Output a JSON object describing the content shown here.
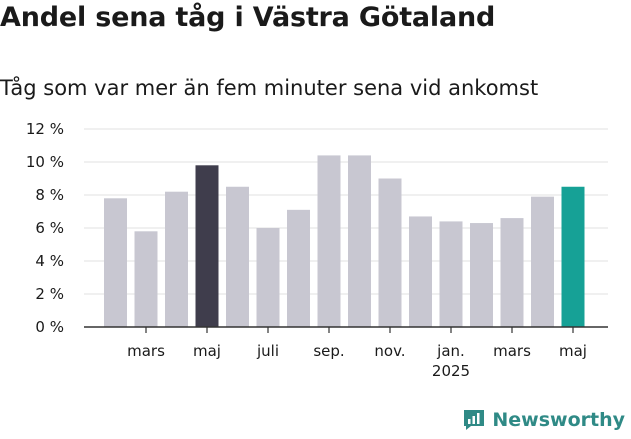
{
  "title": "Andel sena tåg i Västra Götaland",
  "subtitle": "Tåg som var mer än fem minuter sena vid ankomst",
  "brand": {
    "name": "Newsworthy",
    "icon": "newsworthy-logo-icon"
  },
  "colors": {
    "bar": "#c8c7d1",
    "highlight_dark": "#3f3d4c",
    "highlight_teal": "#16a196",
    "grid": "#e2e2e2",
    "axis": "#333333"
  },
  "chart_data": {
    "type": "bar",
    "title": "Andel sena tåg i Västra Götaland",
    "subtitle": "Tåg som var mer än fem minuter sena vid ankomst",
    "xlabel": "",
    "ylabel": "",
    "ylim": [
      0,
      12
    ],
    "yticks": [
      0,
      2,
      4,
      6,
      8,
      10,
      12
    ],
    "ytick_labels": [
      "0 %",
      "2 %",
      "4 %",
      "6 %",
      "8 %",
      "10 %",
      "12 %"
    ],
    "grid": true,
    "legend": "none",
    "categories": [
      "2024-02",
      "2024-03",
      "2024-04",
      "2024-05",
      "2024-06",
      "2024-07",
      "2024-08",
      "2024-09",
      "2024-10",
      "2024-11",
      "2024-12",
      "2025-01",
      "2025-02",
      "2025-03",
      "2025-04",
      "2025-05"
    ],
    "values": [
      7.8,
      5.8,
      8.2,
      9.8,
      8.5,
      6.0,
      7.1,
      10.4,
      10.4,
      9.0,
      6.7,
      6.4,
      6.3,
      6.6,
      7.9,
      8.5
    ],
    "highlight": {
      "3": "dark",
      "15": "teal"
    },
    "x_tick_labels": [
      {
        "label": "mars",
        "index": 1
      },
      {
        "label": "maj",
        "index": 3
      },
      {
        "label": "juli",
        "index": 5
      },
      {
        "label": "sep.",
        "index": 7
      },
      {
        "label": "nov.",
        "index": 9
      },
      {
        "label": "jan.",
        "index": 11,
        "sublabel": "2025"
      },
      {
        "label": "mars",
        "index": 13
      },
      {
        "label": "maj",
        "index": 15
      }
    ]
  }
}
